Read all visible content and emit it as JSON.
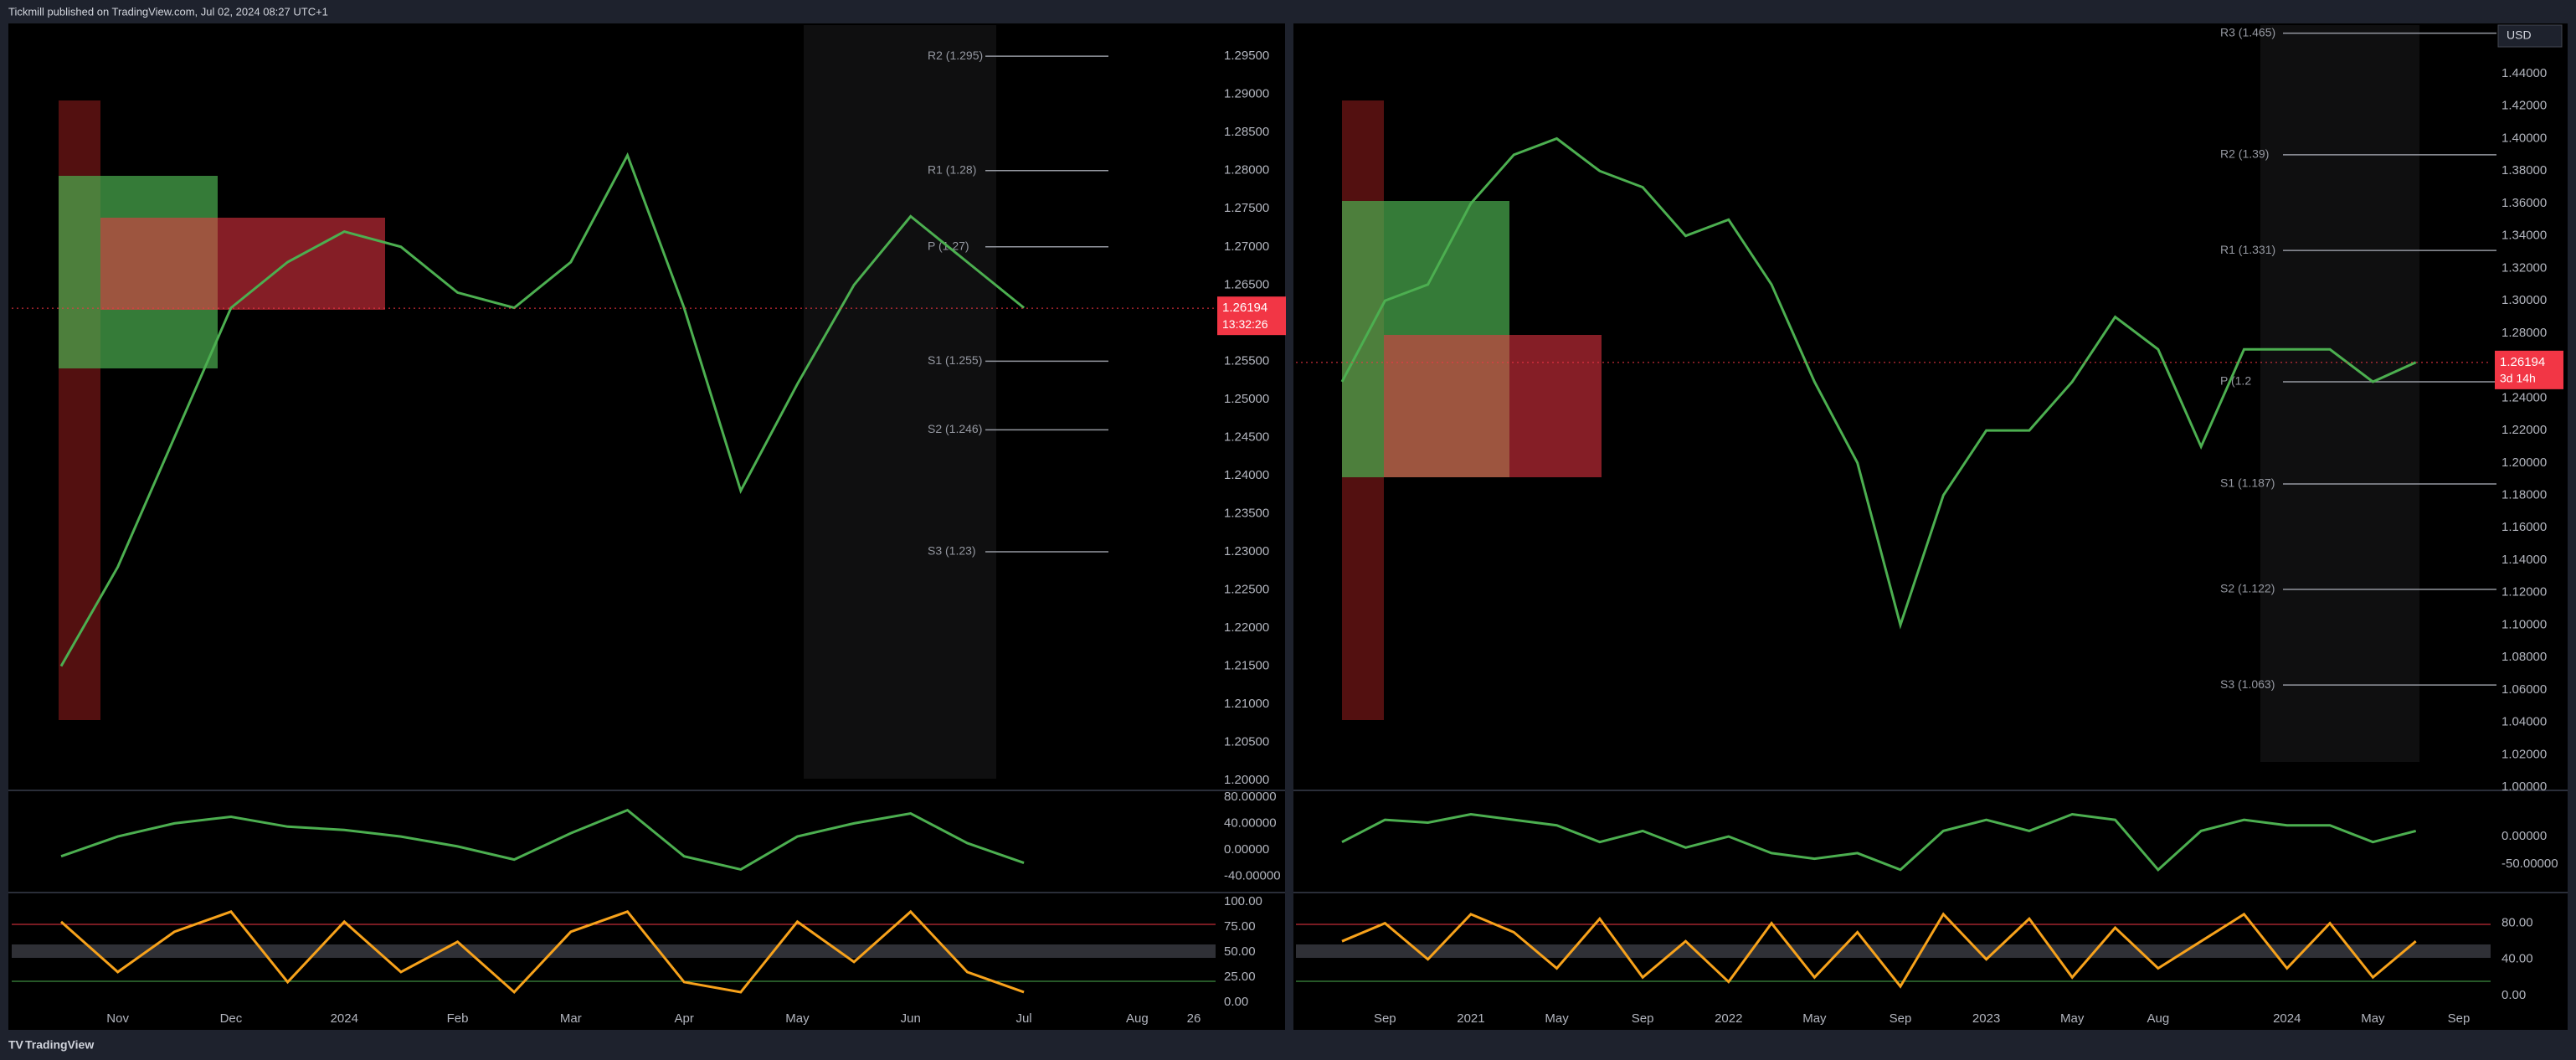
{
  "header": {
    "publisher": "Tickmill published on TradingView.com, Jul 02, 2024 08:27 UTC+1"
  },
  "footer": {
    "brand": "TradingView"
  },
  "chart_data": [
    {
      "type": "line",
      "color": "#4caf50",
      "categories": [
        null,
        "Nov",
        null,
        "Dec",
        null,
        "2024",
        null,
        "Feb",
        null,
        "Mar",
        null,
        "Apr",
        null,
        "May",
        null,
        "Jun",
        null,
        "Jul",
        null,
        "Aug",
        "26"
      ],
      "values": [
        1.215,
        1.228,
        1.245,
        1.262,
        1.268,
        1.272,
        1.27,
        1.264,
        1.262,
        1.268,
        1.282,
        1.262,
        1.238,
        1.252,
        1.265,
        1.274,
        1.268,
        1.262,
        null,
        null,
        null
      ],
      "ylim": [
        1.1987,
        1.2993
      ],
      "yticks": [
        {
          "value": 1.2,
          "label": "1.20000"
        },
        {
          "value": 1.205,
          "label": "1.20500"
        },
        {
          "value": 1.21,
          "label": "1.21000"
        },
        {
          "value": 1.215,
          "label": "1.21500"
        },
        {
          "value": 1.22,
          "label": "1.22000"
        },
        {
          "value": 1.225,
          "label": "1.22500"
        },
        {
          "value": 1.23,
          "label": "1.23000"
        },
        {
          "value": 1.235,
          "label": "1.23500"
        },
        {
          "value": 1.24,
          "label": "1.24000"
        },
        {
          "value": 1.245,
          "label": "1.24500"
        },
        {
          "value": 1.25,
          "label": "1.25000"
        },
        {
          "value": 1.255,
          "label": "1.25500"
        },
        {
          "value": 1.26,
          "label": "1.26000"
        },
        {
          "value": 1.265,
          "label": "1.26500"
        },
        {
          "value": 1.27,
          "label": "1.27000"
        },
        {
          "value": 1.275,
          "label": "1.27500"
        },
        {
          "value": 1.28,
          "label": "1.28000"
        },
        {
          "value": 1.285,
          "label": "1.28500"
        },
        {
          "value": 1.29,
          "label": "1.29000"
        },
        {
          "value": 1.295,
          "label": "1.29500"
        }
      ],
      "pivots": [
        {
          "label": "R2 (1.295)",
          "value": 1.295
        },
        {
          "label": "R1 (1.28)",
          "value": 1.28
        },
        {
          "label": "P (1.27)",
          "value": 1.27
        },
        {
          "label": "S1 (1.255)",
          "value": 1.255
        },
        {
          "label": "S2 (1.246)",
          "value": 1.246
        },
        {
          "label": "S3 (1.23)",
          "value": 1.23
        }
      ],
      "last_price": 1.26194,
      "countdown": "13:32:26"
    },
    {
      "type": "line",
      "color": "#4caf50",
      "values": [
        -10,
        20,
        40,
        50,
        35,
        30,
        20,
        5,
        -15,
        25,
        60,
        -10,
        -30,
        20,
        40,
        55,
        10,
        -20,
        null,
        null,
        null
      ],
      "ylim": [
        -65,
        90
      ],
      "yticks": [
        {
          "value": 80,
          "label": "80.00000"
        },
        {
          "value": 40,
          "label": "40.00000"
        },
        {
          "value": 0,
          "label": "0.00000"
        },
        {
          "value": -40,
          "label": "-40.00000"
        }
      ]
    },
    {
      "type": "line",
      "color": "#f7a21b",
      "values": [
        80,
        30,
        70,
        90,
        20,
        80,
        30,
        60,
        10,
        70,
        90,
        20,
        10,
        80,
        40,
        90,
        30,
        10,
        null,
        null,
        null
      ],
      "ylim": [
        -6.7,
        109
      ],
      "yticks": [
        {
          "value": 100,
          "label": "100.00"
        },
        {
          "value": 75,
          "label": "75.00"
        },
        {
          "value": 50,
          "label": "50.00"
        },
        {
          "value": 25,
          "label": "25.00"
        },
        {
          "value": 0,
          "label": "0.00"
        }
      ]
    },
    {
      "type": "line",
      "color": "#4caf50",
      "categories": [
        null,
        "Sep",
        null,
        "2021",
        null,
        "May",
        null,
        "Sep",
        null,
        "2022",
        null,
        "May",
        null,
        "Sep",
        null,
        "2023",
        null,
        "May",
        null,
        "Aug",
        null,
        null,
        "2024",
        null,
        "May",
        null,
        "Sep"
      ],
      "values": [
        1.25,
        1.3,
        1.31,
        1.36,
        1.39,
        1.4,
        1.38,
        1.37,
        1.34,
        1.35,
        1.31,
        1.25,
        1.2,
        1.1,
        1.18,
        1.22,
        1.22,
        1.25,
        1.29,
        1.27,
        1.21,
        1.27,
        1.27,
        1.27,
        1.25,
        1.262,
        null
      ],
      "ylim": [
        0.998,
        1.471
      ],
      "yticks": [
        {
          "value": 1.0,
          "label": "1.00000"
        },
        {
          "value": 1.02,
          "label": "1.02000"
        },
        {
          "value": 1.04,
          "label": "1.04000"
        },
        {
          "value": 1.06,
          "label": "1.06000"
        },
        {
          "value": 1.08,
          "label": "1.08000"
        },
        {
          "value": 1.1,
          "label": "1.10000"
        },
        {
          "value": 1.12,
          "label": "1.12000"
        },
        {
          "value": 1.14,
          "label": "1.14000"
        },
        {
          "value": 1.16,
          "label": "1.16000"
        },
        {
          "value": 1.18,
          "label": "1.18000"
        },
        {
          "value": 1.2,
          "label": "1.20000"
        },
        {
          "value": 1.22,
          "label": "1.22000"
        },
        {
          "value": 1.24,
          "label": "1.24000"
        },
        {
          "value": 1.26,
          "label": "1.26000"
        },
        {
          "value": 1.28,
          "label": "1.28000"
        },
        {
          "value": 1.3,
          "label": "1.30000"
        },
        {
          "value": 1.32,
          "label": "1.32000"
        },
        {
          "value": 1.34,
          "label": "1.34000"
        },
        {
          "value": 1.36,
          "label": "1.36000"
        },
        {
          "value": 1.38,
          "label": "1.38000"
        },
        {
          "value": 1.4,
          "label": "1.40000"
        },
        {
          "value": 1.42,
          "label": "1.42000"
        },
        {
          "value": 1.44,
          "label": "1.44000"
        }
      ],
      "pivots": [
        {
          "label": "R3 (1.465)",
          "value": 1.465
        },
        {
          "label": "R2 (1.39)",
          "value": 1.39
        },
        {
          "label": "R1 (1.331)",
          "value": 1.331
        },
        {
          "label": "P (1.2",
          "value": 1.25
        },
        {
          "label": "S1 (1.187)",
          "value": 1.187
        },
        {
          "label": "S2 (1.122)",
          "value": 1.122
        },
        {
          "label": "S3 (1.063)",
          "value": 1.063
        }
      ],
      "last_price": 1.26194,
      "countdown": "3d 14h",
      "currency": "USD"
    },
    {
      "type": "line",
      "color": "#4caf50",
      "values": [
        -10,
        30,
        25,
        40,
        30,
        20,
        -10,
        10,
        -20,
        0,
        -30,
        -40,
        -30,
        -60,
        10,
        30,
        10,
        40,
        30,
        -60,
        10,
        30,
        20,
        20,
        -10,
        10,
        null
      ],
      "ylim": [
        -101,
        83
      ],
      "yticks": [
        {
          "value": 0,
          "label": "0.00000"
        },
        {
          "value": -50,
          "label": "-50.00000"
        }
      ]
    },
    {
      "type": "line",
      "color": "#f7a21b",
      "values": [
        60,
        80,
        40,
        90,
        70,
        30,
        85,
        20,
        60,
        15,
        80,
        20,
        70,
        10,
        90,
        40,
        85,
        20,
        75,
        30,
        60,
        90,
        30,
        80,
        20,
        60,
        null
      ],
      "ylim": [
        -15,
        114
      ],
      "yticks": [
        {
          "value": 80,
          "label": "80.00"
        },
        {
          "value": 40,
          "label": "40.00"
        },
        {
          "value": 0,
          "label": "0.00"
        }
      ]
    }
  ]
}
